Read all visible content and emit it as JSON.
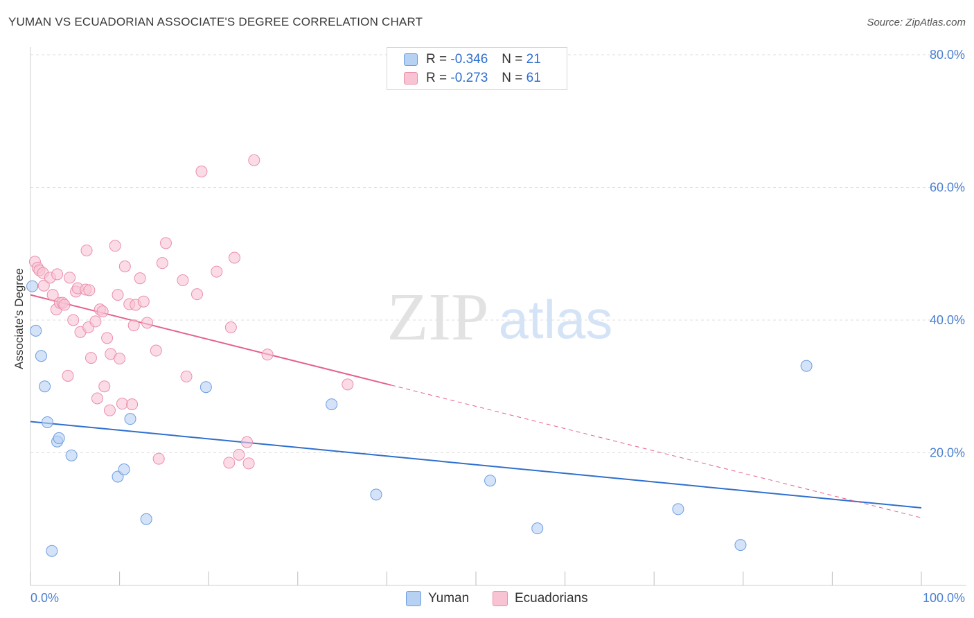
{
  "title": "YUMAN VS ECUADORIAN ASSOCIATE'S DEGREE CORRELATION CHART",
  "source": "Source: ZipAtlas.com",
  "watermark": {
    "zip": "ZIP",
    "atlas": "atlas"
  },
  "colors": {
    "yuman_fill": "#b7d1f2",
    "yuman_stroke": "#6b9de3",
    "yuman_line": "#2f6fce",
    "ecu_fill": "#f8c3d3",
    "ecu_stroke": "#ea8fab",
    "ecu_line": "#e4628c",
    "grid": "#dddddd",
    "tick_text": "#4a7fd1"
  },
  "legend_top": {
    "rows": [
      {
        "r_label": "R =",
        "r_value": "-0.346",
        "n_label": "N =",
        "n_value": "21"
      },
      {
        "r_label": "R =",
        "r_value": "-0.273",
        "n_label": "N =",
        "n_value": "61"
      }
    ]
  },
  "legend_bottom": {
    "series1": "Yuman",
    "series2": "Ecuadorians"
  },
  "chart_data": {
    "type": "scatter",
    "title": "YUMAN VS ECUADORIAN ASSOCIATE'S DEGREE CORRELATION CHART",
    "xlabel": "",
    "ylabel": "Associate's Degree",
    "xlim": [
      0,
      100
    ],
    "ylim": [
      0,
      80
    ],
    "x_tick_labels": [
      "0.0%",
      "100.0%"
    ],
    "y_ticks": [
      20,
      40,
      60,
      80
    ],
    "y_tick_labels": [
      "20.0%",
      "40.0%",
      "60.0%",
      "80.0%"
    ],
    "grid": true,
    "series": [
      {
        "name": "Yuman",
        "r": -0.346,
        "n": 21,
        "trend": {
          "x0": 0,
          "y0": 24.7,
          "x1": 100,
          "y1": 11.7,
          "solid_to": 100
        },
        "points": [
          [
            0.2,
            45.1
          ],
          [
            0.6,
            38.4
          ],
          [
            1.2,
            34.6
          ],
          [
            1.6,
            30.0
          ],
          [
            1.9,
            24.6
          ],
          [
            3.0,
            21.7
          ],
          [
            3.2,
            22.2
          ],
          [
            4.6,
            19.6
          ],
          [
            9.8,
            16.4
          ],
          [
            10.5,
            17.5
          ],
          [
            13.0,
            10.0
          ],
          [
            2.4,
            5.2
          ],
          [
            19.7,
            29.9
          ],
          [
            33.8,
            27.3
          ],
          [
            38.8,
            13.7
          ],
          [
            51.6,
            15.8
          ],
          [
            56.9,
            8.6
          ],
          [
            72.7,
            11.5
          ],
          [
            79.7,
            6.1
          ],
          [
            87.1,
            33.1
          ],
          [
            11.2,
            25.1
          ]
        ]
      },
      {
        "name": "Ecuadorians",
        "r": -0.273,
        "n": 61,
        "trend": {
          "x0": 0,
          "y0": 43.8,
          "x1": 100,
          "y1": 10.2,
          "solid_to": 40.5
        },
        "points": [
          [
            0.5,
            48.8
          ],
          [
            0.8,
            47.9
          ],
          [
            1.0,
            47.5
          ],
          [
            1.4,
            47.1
          ],
          [
            1.5,
            45.2
          ],
          [
            2.2,
            46.4
          ],
          [
            2.5,
            43.8
          ],
          [
            2.9,
            41.6
          ],
          [
            3.0,
            46.9
          ],
          [
            3.3,
            42.6
          ],
          [
            3.6,
            42.6
          ],
          [
            3.8,
            42.3
          ],
          [
            4.2,
            31.6
          ],
          [
            4.4,
            46.4
          ],
          [
            4.8,
            40.0
          ],
          [
            5.1,
            44.3
          ],
          [
            5.3,
            44.8
          ],
          [
            5.6,
            38.2
          ],
          [
            6.2,
            44.6
          ],
          [
            6.3,
            50.5
          ],
          [
            6.5,
            38.9
          ],
          [
            6.6,
            44.5
          ],
          [
            6.8,
            34.3
          ],
          [
            7.3,
            39.8
          ],
          [
            7.5,
            28.2
          ],
          [
            7.8,
            41.6
          ],
          [
            8.1,
            41.3
          ],
          [
            8.3,
            30.0
          ],
          [
            8.6,
            37.3
          ],
          [
            8.9,
            26.4
          ],
          [
            9.0,
            34.9
          ],
          [
            9.5,
            51.2
          ],
          [
            9.8,
            43.8
          ],
          [
            10.0,
            34.2
          ],
          [
            10.3,
            27.4
          ],
          [
            10.6,
            48.1
          ],
          [
            11.1,
            42.4
          ],
          [
            11.4,
            27.3
          ],
          [
            11.6,
            39.2
          ],
          [
            11.8,
            42.3
          ],
          [
            12.3,
            46.3
          ],
          [
            12.7,
            42.8
          ],
          [
            13.1,
            39.6
          ],
          [
            14.1,
            35.4
          ],
          [
            14.4,
            19.1
          ],
          [
            14.8,
            48.6
          ],
          [
            15.2,
            51.6
          ],
          [
            17.1,
            46.0
          ],
          [
            17.5,
            31.5
          ],
          [
            18.7,
            43.9
          ],
          [
            19.2,
            62.4
          ],
          [
            20.9,
            47.3
          ],
          [
            22.3,
            18.5
          ],
          [
            22.5,
            38.9
          ],
          [
            22.9,
            49.4
          ],
          [
            23.4,
            19.7
          ],
          [
            24.3,
            21.6
          ],
          [
            24.5,
            18.4
          ],
          [
            25.1,
            64.1
          ],
          [
            26.6,
            34.8
          ],
          [
            35.6,
            30.3
          ]
        ]
      }
    ]
  }
}
